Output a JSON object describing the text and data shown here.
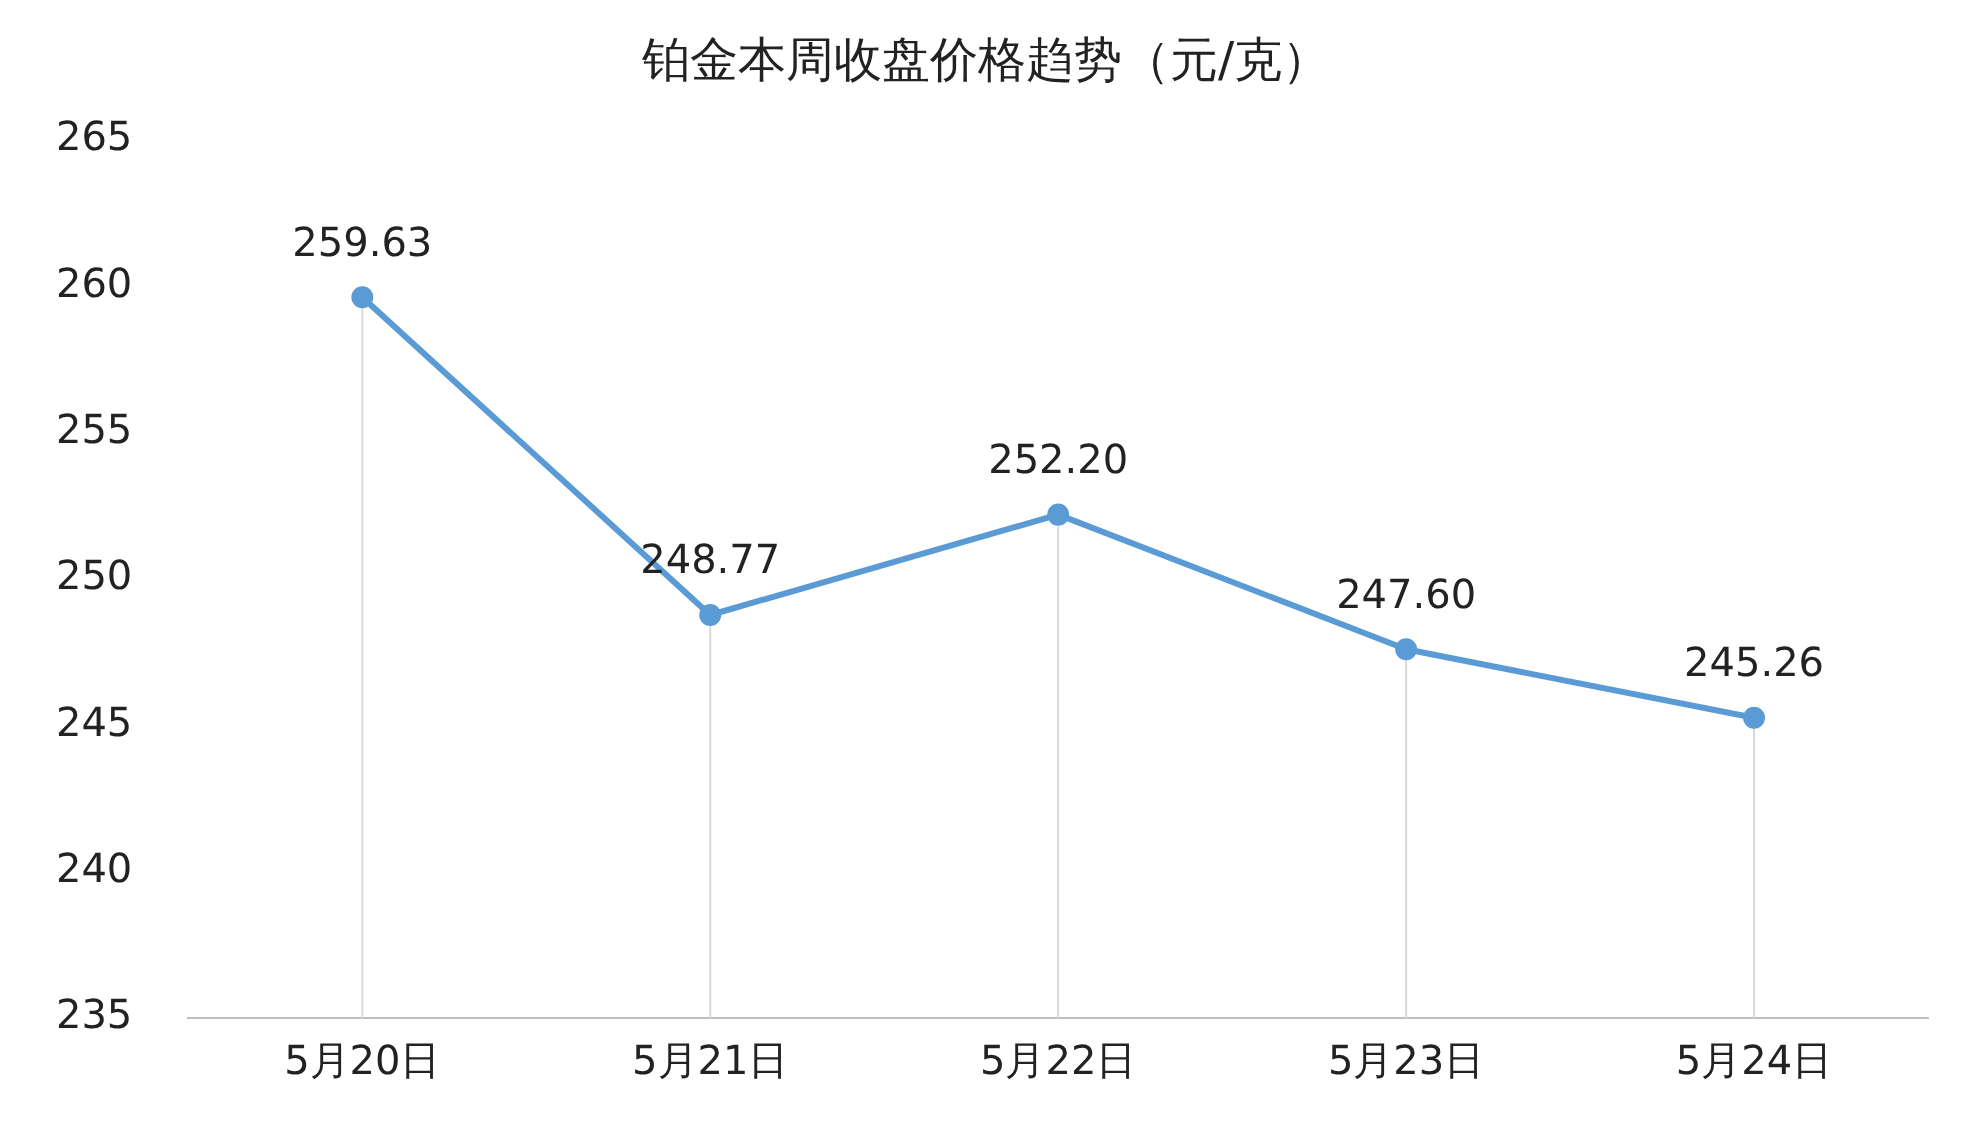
{
  "chart_data": {
    "type": "line",
    "title": "铂金本周收盘价格趋势（元/克）",
    "categories": [
      "5月20日",
      "5月21日",
      "5月22日",
      "5月23日",
      "5月24日"
    ],
    "series": [
      {
        "color": "#5b9bd5",
        "values": [
          259.63,
          248.77,
          252.2,
          247.6,
          245.26
        ],
        "value_labels": [
          "259.63",
          "248.77",
          "252.20",
          "247.60",
          "245.26"
        ]
      }
    ],
    "ylim": [
      235,
      265
    ],
    "yticks": [
      235,
      240,
      245,
      250,
      255,
      260,
      265
    ],
    "grid": "x",
    "legend": false,
    "marker": "circle",
    "line_style": "solid"
  }
}
